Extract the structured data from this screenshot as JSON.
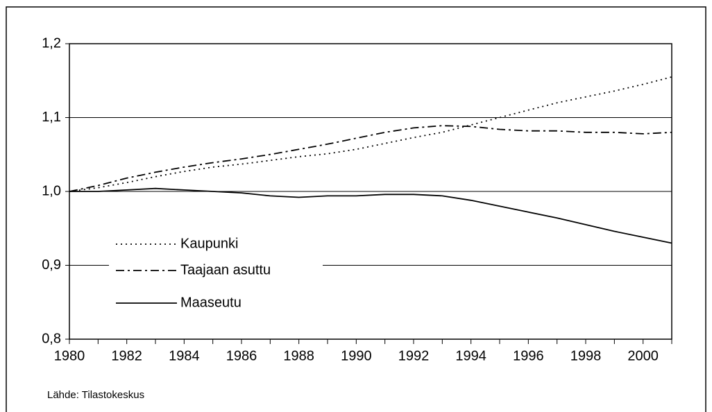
{
  "chart_data": {
    "type": "line",
    "x": [
      1980,
      1981,
      1982,
      1983,
      1984,
      1985,
      1986,
      1987,
      1988,
      1989,
      1990,
      1991,
      1992,
      1993,
      1994,
      1995,
      1996,
      1997,
      1998,
      1999,
      2000,
      2001
    ],
    "series": [
      {
        "name": "Kaupunki",
        "color": "#000000",
        "dash": "dotted",
        "values": [
          1.0,
          1.005,
          1.012,
          1.02,
          1.027,
          1.033,
          1.037,
          1.042,
          1.047,
          1.051,
          1.057,
          1.065,
          1.073,
          1.08,
          1.09,
          1.1,
          1.11,
          1.12,
          1.128,
          1.136,
          1.145,
          1.155
        ]
      },
      {
        "name": "Taajaan asuttu",
        "color": "#000000",
        "dash": "dashdot",
        "values": [
          1.0,
          1.008,
          1.018,
          1.026,
          1.033,
          1.039,
          1.044,
          1.05,
          1.057,
          1.064,
          1.072,
          1.08,
          1.086,
          1.089,
          1.088,
          1.084,
          1.082,
          1.082,
          1.08,
          1.08,
          1.078,
          1.08
        ]
      },
      {
        "name": "Maaseutu",
        "color": "#000000",
        "dash": "solid",
        "values": [
          1.0,
          1.0,
          1.002,
          1.004,
          1.002,
          1.0,
          0.998,
          0.994,
          0.992,
          0.994,
          0.994,
          0.996,
          0.996,
          0.994,
          0.988,
          0.98,
          0.972,
          0.964,
          0.955,
          0.946,
          0.938,
          0.93
        ]
      }
    ],
    "xlim": [
      1980,
      2001
    ],
    "xticks": [
      1980,
      1982,
      1984,
      1986,
      1988,
      1990,
      1992,
      1994,
      1996,
      1998,
      2000
    ],
    "ylim": [
      0.8,
      1.2
    ],
    "yticks": [
      {
        "value": 0.8,
        "label": "0,8"
      },
      {
        "value": 0.9,
        "label": "0,9"
      },
      {
        "value": 1.0,
        "label": "1,0"
      },
      {
        "value": 1.1,
        "label": "1,1"
      },
      {
        "value": 1.2,
        "label": "1,2"
      }
    ],
    "grid": true,
    "legend": "left",
    "source": "Lähde: Tilastokeskus"
  }
}
